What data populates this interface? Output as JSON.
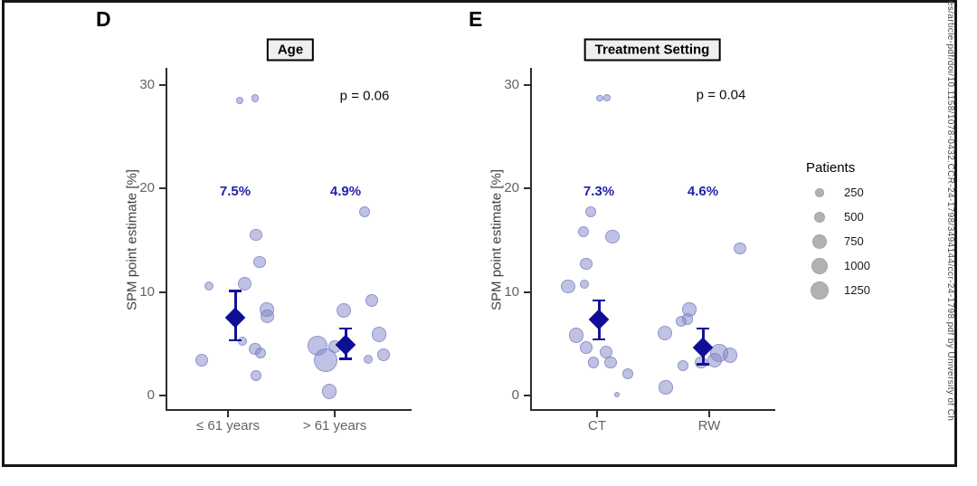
{
  "figure": {
    "watermark_text": "res/article-pdf/doi/10.1158/1078-0432.CCR-24-1798/3494144/ccr-24-1798.pdf by University of Ch"
  },
  "legend": {
    "title": "Patients",
    "sizes": [
      250,
      500,
      750,
      1000,
      1250
    ]
  },
  "chart_data": [
    {
      "type": "scatter",
      "panel_label": "D",
      "title": "Age",
      "p_value": "p = 0.06",
      "ylabel": "SPM point estimate [%]",
      "ylim": [
        0,
        30
      ],
      "yticks": [
        0,
        10,
        20,
        30
      ],
      "grid": false,
      "categories": [
        "≤ 61 years",
        "> 61 years"
      ],
      "summary": [
        {
          "category": "≤ 61 years",
          "label": "7.5%",
          "mean": 7.5,
          "ci": [
            5.3,
            10.1
          ]
        },
        {
          "category": "> 61 years",
          "label": "4.9%",
          "mean": 4.9,
          "ci": [
            3.5,
            6.5
          ]
        }
      ],
      "series": [
        {
          "name": "≤ 61 years",
          "points": [
            {
              "y": 28.5,
              "patients": 190,
              "jx": 13
            },
            {
              "y": 28.7,
              "patients": 230,
              "jx": 30
            },
            {
              "y": 15.5,
              "patients": 580,
              "jx": 31
            },
            {
              "y": 12.9,
              "patients": 540,
              "jx": 35
            },
            {
              "y": 10.6,
              "patients": 300,
              "jx": -21
            },
            {
              "y": 10.8,
              "patients": 670,
              "jx": 19
            },
            {
              "y": 8.3,
              "patients": 720,
              "jx": 43
            },
            {
              "y": 7.6,
              "patients": 670,
              "jx": 44
            },
            {
              "y": 5.2,
              "patients": 300,
              "jx": 16
            },
            {
              "y": 4.5,
              "patients": 540,
              "jx": 30
            },
            {
              "y": 4.1,
              "patients": 480,
              "jx": 36
            },
            {
              "y": 3.4,
              "patients": 580,
              "jx": -29
            },
            {
              "y": 1.9,
              "patients": 430,
              "jx": 31
            }
          ]
        },
        {
          "name": "> 61 years",
          "points": [
            {
              "y": 17.7,
              "patients": 430,
              "jx": 33
            },
            {
              "y": 9.2,
              "patients": 580,
              "jx": 41
            },
            {
              "y": 8.2,
              "patients": 760,
              "jx": 10
            },
            {
              "y": 5.9,
              "patients": 850,
              "jx": 49
            },
            {
              "y": 4.8,
              "patients": 1440,
              "jx": -19
            },
            {
              "y": 4.7,
              "patients": 580,
              "jx": 0
            },
            {
              "y": 3.9,
              "patients": 580,
              "jx": 54
            },
            {
              "y": 3.5,
              "patients": 300,
              "jx": 37
            },
            {
              "y": 3.4,
              "patients": 2000,
              "jx": -10
            },
            {
              "y": 0.4,
              "patients": 850,
              "jx": -6
            }
          ]
        }
      ]
    },
    {
      "type": "scatter",
      "panel_label": "E",
      "title": "Treatment Setting",
      "p_value": "p = 0.04",
      "ylabel": "SPM point estimate [%]",
      "ylim": [
        0,
        30
      ],
      "yticks": [
        0,
        10,
        20,
        30
      ],
      "grid": false,
      "categories": [
        "CT",
        "RW"
      ],
      "summary": [
        {
          "category": "CT",
          "label": "7.3%",
          "mean": 7.3,
          "ci": [
            5.4,
            9.2
          ]
        },
        {
          "category": "RW",
          "label": "4.6%",
          "mean": 4.6,
          "ci": [
            3.0,
            6.5
          ]
        }
      ],
      "series": [
        {
          "name": "CT",
          "points": [
            {
              "y": 28.7,
              "patients": 160,
              "jx": 3
            },
            {
              "y": 28.7,
              "patients": 190,
              "jx": 11
            },
            {
              "y": 17.7,
              "patients": 430,
              "jx": -7
            },
            {
              "y": 15.8,
              "patients": 480,
              "jx": -15
            },
            {
              "y": 15.3,
              "patients": 700,
              "jx": 17
            },
            {
              "y": 12.7,
              "patients": 540,
              "jx": -12
            },
            {
              "y": 10.5,
              "patients": 700,
              "jx": -32
            },
            {
              "y": 10.7,
              "patients": 300,
              "jx": -14
            },
            {
              "y": 5.8,
              "patients": 850,
              "jx": -23
            },
            {
              "y": 4.6,
              "patients": 580,
              "jx": -12
            },
            {
              "y": 4.2,
              "patients": 580,
              "jx": 10
            },
            {
              "y": 3.2,
              "patients": 480,
              "jx": -4
            },
            {
              "y": 3.2,
              "patients": 540,
              "jx": 15
            },
            {
              "y": 2.1,
              "patients": 480,
              "jx": 34
            },
            {
              "y": 0.1,
              "patients": 110,
              "jx": 22
            }
          ]
        },
        {
          "name": "RW",
          "points": [
            {
              "y": 14.2,
              "patients": 540,
              "jx": 34
            },
            {
              "y": 8.3,
              "patients": 700,
              "jx": -22
            },
            {
              "y": 7.4,
              "patients": 480,
              "jx": -24
            },
            {
              "y": 7.2,
              "patients": 430,
              "jx": -31
            },
            {
              "y": 6.0,
              "patients": 760,
              "jx": -49
            },
            {
              "y": 4.1,
              "patients": 1150,
              "jx": 11
            },
            {
              "y": 3.9,
              "patients": 850,
              "jx": 23
            },
            {
              "y": 3.4,
              "patients": 760,
              "jx": 6
            },
            {
              "y": 3.2,
              "patients": 540,
              "jx": -9
            },
            {
              "y": 2.9,
              "patients": 430,
              "jx": -29
            },
            {
              "y": 0.8,
              "patients": 700,
              "jx": -48
            }
          ]
        }
      ]
    }
  ]
}
